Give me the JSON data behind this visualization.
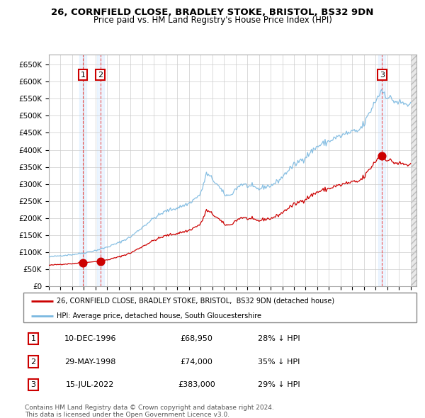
{
  "title": "26, CORNFIELD CLOSE, BRADLEY STOKE, BRISTOL, BS32 9DN",
  "subtitle": "Price paid vs. HM Land Registry's House Price Index (HPI)",
  "legend_line1": "26, CORNFIELD CLOSE, BRADLEY STOKE, BRISTOL,  BS32 9DN (detached house)",
  "legend_line2": "HPI: Average price, detached house, South Gloucestershire",
  "footnote1": "Contains HM Land Registry data © Crown copyright and database right 2024.",
  "footnote2": "This data is licensed under the Open Government Licence v3.0.",
  "transactions": [
    {
      "id": 1,
      "date": "10-DEC-1996",
      "price": "£68,950",
      "hpi_text": "28% ↓ HPI",
      "year": 1996.92,
      "value": 68950
    },
    {
      "id": 2,
      "date": "29-MAY-1998",
      "price": "£74,000",
      "hpi_text": "35% ↓ HPI",
      "year": 1998.41,
      "value": 74000
    },
    {
      "id": 3,
      "date": "15-JUL-2022",
      "price": "£383,000",
      "hpi_text": "29% ↓ HPI",
      "year": 2022.54,
      "value": 383000
    }
  ],
  "xmin": 1994.0,
  "xmax": 2025.5,
  "ymin": 0,
  "ymax": 680000,
  "yticks": [
    0,
    50000,
    100000,
    150000,
    200000,
    250000,
    300000,
    350000,
    400000,
    450000,
    500000,
    550000,
    600000,
    650000
  ],
  "xticks": [
    1994,
    1995,
    1996,
    1997,
    1998,
    1999,
    2000,
    2001,
    2002,
    2003,
    2004,
    2005,
    2006,
    2007,
    2008,
    2009,
    2010,
    2011,
    2012,
    2013,
    2014,
    2015,
    2016,
    2017,
    2018,
    2019,
    2020,
    2021,
    2022,
    2023,
    2024,
    2025
  ],
  "hpi_color": "#7ab8e0",
  "price_color": "#cc0000",
  "grid_color": "#cccccc",
  "background_color": "#ffffff",
  "transaction_shade_color": "#ddeeff",
  "dashed_line_color": "#ee3333"
}
